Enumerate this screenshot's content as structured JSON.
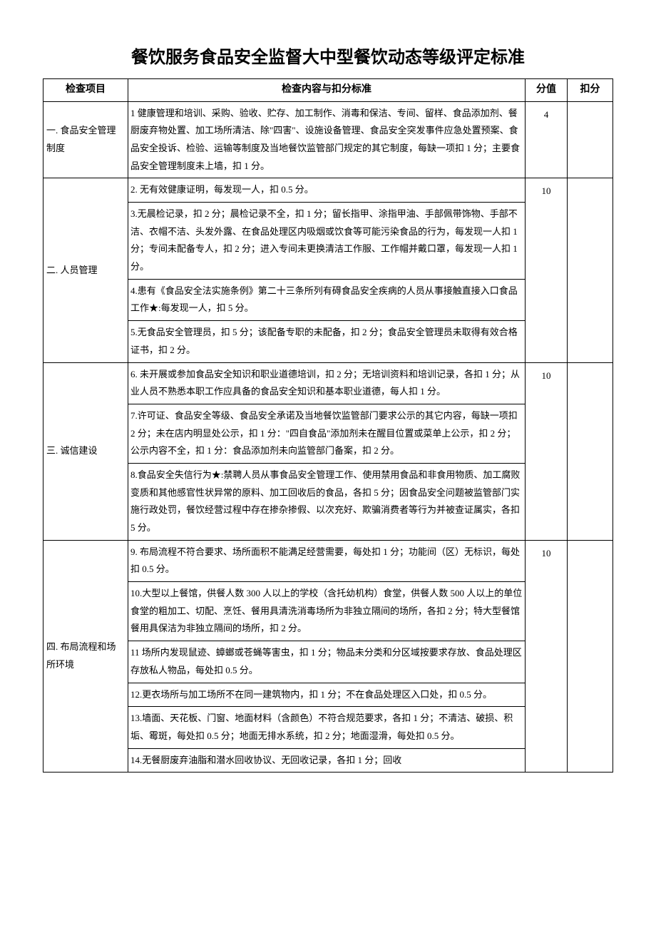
{
  "title": "餐饮服务食品安全监督大中型餐饮动态等级评定标准",
  "headers": {
    "item": "检查项目",
    "content": "检查内容与扣分标准",
    "score": "分值",
    "deduct": "扣分"
  },
  "rows": [
    {
      "item": "一. 食品安全管理制度",
      "score": "4",
      "content": "1 健康管理和培训、采购、验收、贮存、加工制作、消毒和保洁、专间、留样、食品添加剂、餐厨废弃物处置、加工场所清洁、除\"四害\"、设施设备管理、食品安全突发事件应急处置预案、食品安全投诉、检验、运输等制度及当地餐饮监管部门规定的其它制度，每缺一项扣 1 分；主要食品安全管理制度未上墙，扣 1 分。"
    },
    {
      "item": "二. 人员管理",
      "score": "10",
      "content_parts": [
        "2. 无有效健康证明，每发现一人，扣 0.5 分。",
        "3.无晨检记录，扣 2 分；晨检记录不全，扣 1 分；留长指甲、涂指甲油、手部佩带饰物、手部不洁、衣帽不洁、头发外露、在食品处理区内吸烟或饮食等可能污染食品的行为，每发现一人扣 1 分；专间未配备专人，扣 2 分；进入专间未更换清洁工作服、工作帽并戴口罩，每发现一人扣 1 分。",
        "4.患有《食品安全法实施条例》第二十三条所列有碍食品安全疾病的人员从事接触直接入口食品工作★:每发现一人，扣 5 分。",
        "5.无食品安全管理员，扣 5 分；该配备专职的未配备，扣 2 分；食品安全管理员未取得有效合格证书，扣 2 分。"
      ]
    },
    {
      "item": "三. 诚信建设",
      "score": "10",
      "content_parts": [
        "6. 未开展或参加食品安全知识和职业道德培训，扣 2 分；无培训资料和培训记录，各扣 1 分；从业人员不熟悉本职工作应具备的食品安全知识和基本职业道德，每人扣 1 分。",
        "7.许可证、食品安全等级、食品安全承诺及当地餐饮监管部门要求公示的其它内容，每缺一项扣 2 分；未在店内明显处公示，扣 1 分：\"四自食品\"添加剂未在醒目位置或菜单上公示，扣 2 分；公示内容不全，扣 1 分：食品添加剂未向监管部门备案，扣 2 分。",
        "8.食品安全失信行为★:禁聘人员从事食品安全管理工作、使用禁用食品和非食用物质、加工腐败变质和其他感官性状异常的原料、加工回收后的食品，各扣 5 分；因食品安全问题被监管部门实施行政处罚，餐饮经营过程中存在掺杂掺假、以次充好、欺骗消费者等行为并被查证属实，各扣 5 分。"
      ]
    },
    {
      "item": "四. 布局流程和场所环境",
      "score": "10",
      "content_parts": [
        "9. 布局流程不符合要求、场所面积不能满足经营需要，每处扣 1 分；功能间（区）无标识，每处扣 0.5 分。",
        "10.大型以上餐馆，供餐人数 300 人以上的学校（含托幼机构）食堂，供餐人数 500 人以上的单位食堂的粗加工、切配、烹饪、餐用具清洗消毒场所为非独立隔间的场所，各扣 2 分；特大型餐馆餐用具保洁为非独立隔间的场所，扣 2 分。",
        "11 场所内发现鼠迹、蟑螂或苍蝇等害虫，扣 1 分；物品未分类和分区域按要求存放、食品处理区存放私人物品，每处扣 0.5 分。",
        "12.更衣场所与加工场所不在同一建筑物内，扣 1 分；不在食品处理区入口处，扣 0.5 分。",
        "13.墙面、天花板、门窗、地面材料（含颜色）不符合规范要求，各扣 1 分；不清洁、破损、积垢、霉斑，每处扣 0.5 分；地面无排水系统，扣 2 分；地面湿滑，每处扣 0.5 分。",
        "14.无餐厨废弃油脂和潜水回收协议、无回收记录，各扣 1 分；回收"
      ]
    }
  ],
  "colors": {
    "background": "#ffffff",
    "border": "#000000",
    "text": "#000000"
  }
}
